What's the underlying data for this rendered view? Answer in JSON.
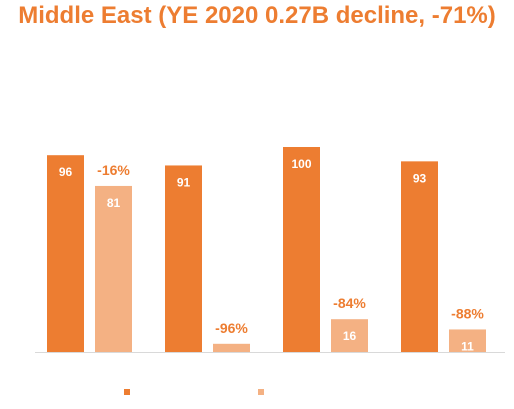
{
  "colors": {
    "title": "#ED7D31",
    "series1": "#ED7D31",
    "series2": "#F4B183",
    "baseline": "#D9D9D9",
    "bar_label": "#ffffff",
    "pct_label": "#ED7D31"
  },
  "chart_data": {
    "type": "bar",
    "title": "Middle East (YE 2020 0.27B decline, -71%)",
    "categories": [
      "",
      "",
      "",
      ""
    ],
    "series": [
      {
        "values": [
          96,
          91,
          100,
          93
        ]
      },
      {
        "values": [
          81,
          4,
          16,
          11
        ],
        "labels": [
          "81",
          "",
          "16",
          "11"
        ]
      }
    ],
    "change_labels": [
      "-16%",
      "-96%",
      "-84%",
      "-88%"
    ],
    "ylim": [
      0,
      100
    ],
    "grid": false,
    "legend": "bottom-left"
  }
}
